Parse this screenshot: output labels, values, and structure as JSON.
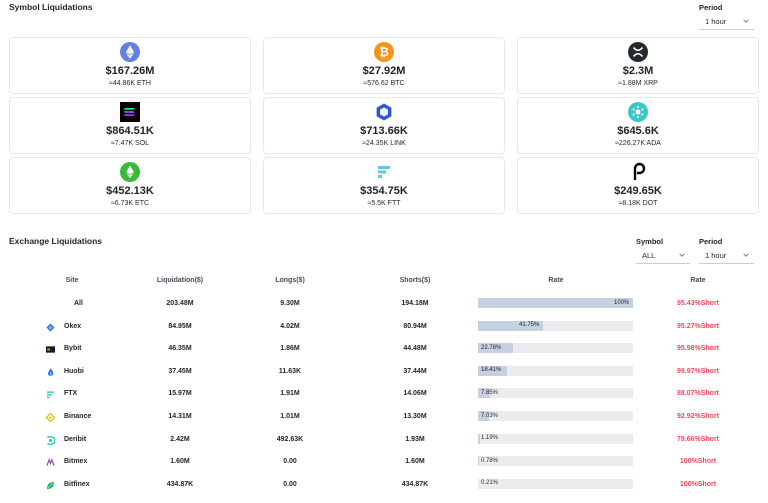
{
  "symbol_section": {
    "title": "Symbol Liquidations",
    "period_label": "Period",
    "period_value": "1 hour"
  },
  "cards": [
    {
      "icon": "eth-icon",
      "amount": "$167.26M",
      "approx": "≈44.86K ETH"
    },
    {
      "icon": "btc-icon",
      "amount": "$27.92M",
      "approx": "≈576.62 BTC"
    },
    {
      "icon": "xrp-icon",
      "amount": "$2.3M",
      "approx": "≈1.88M XRP"
    },
    {
      "icon": "sol-icon",
      "amount": "$864.51K",
      "approx": "≈7.47K SOL"
    },
    {
      "icon": "link-icon",
      "amount": "$713.66K",
      "approx": "≈24.35K LINK"
    },
    {
      "icon": "ada-icon",
      "amount": "$645.6K",
      "approx": "≈226.27K ADA"
    },
    {
      "icon": "etc-icon",
      "amount": "$452.13K",
      "approx": "≈6.73K ETC"
    },
    {
      "icon": "ftt-icon",
      "amount": "$354.75K",
      "approx": "≈5.5K FTT"
    },
    {
      "icon": "dot-icon",
      "amount": "$249.65K",
      "approx": "≈8.18K DOT"
    }
  ],
  "exchange_section": {
    "title": "Exchange Liquidations",
    "symbol_label": "Symbol",
    "symbol_value": "ALL",
    "period_label": "Period",
    "period_value": "1 hour"
  },
  "table": {
    "headers": [
      "Site",
      "Liquidation($)",
      "Longs($)",
      "Shorts($)",
      "Rate",
      "Rate"
    ],
    "rows": [
      {
        "site": "All",
        "icon": "",
        "liquidation": "203.48M",
        "longs": "9.30M",
        "shorts": "194.18M",
        "rate_bar_label": "100%",
        "rate_bar_value": 1.0,
        "rate_short": "95.43%Short"
      },
      {
        "site": "Okex",
        "icon": "okex-icon",
        "liquidation": "84.95M",
        "longs": "4.02M",
        "shorts": "80.94M",
        "rate_bar_label": "41.75%",
        "rate_bar_value": 0.4175,
        "rate_short": "95.27%Short"
      },
      {
        "site": "Bybit",
        "icon": "bybit-icon",
        "liquidation": "46.35M",
        "longs": "1.86M",
        "shorts": "44.48M",
        "rate_bar_label": "22.78%",
        "rate_bar_value": 0.2278,
        "rate_short": "95.98%Short"
      },
      {
        "site": "Huobi",
        "icon": "huobi-icon",
        "liquidation": "37.45M",
        "longs": "11.63K",
        "shorts": "37.44M",
        "rate_bar_label": "18.41%",
        "rate_bar_value": 0.1841,
        "rate_short": "99.97%Short"
      },
      {
        "site": "FTX",
        "icon": "ftx-icon",
        "liquidation": "15.97M",
        "longs": "1.91M",
        "shorts": "14.06M",
        "rate_bar_label": "7.85%",
        "rate_bar_value": 0.0785,
        "rate_short": "88.07%Short"
      },
      {
        "site": "Binance",
        "icon": "binance-icon",
        "liquidation": "14.31M",
        "longs": "1.01M",
        "shorts": "13.30M",
        "rate_bar_label": "7.03%",
        "rate_bar_value": 0.0703,
        "rate_short": "92.92%Short"
      },
      {
        "site": "Deribit",
        "icon": "deribit-icon",
        "liquidation": "2.42M",
        "longs": "492.63K",
        "shorts": "1.93M",
        "rate_bar_label": "1.19%",
        "rate_bar_value": 0.0119,
        "rate_short": "79.66%Short"
      },
      {
        "site": "Bitmex",
        "icon": "bitmex-icon",
        "liquidation": "1.60M",
        "longs": "0.00",
        "shorts": "1.60M",
        "rate_bar_label": "0.78%",
        "rate_bar_value": 0.0078,
        "rate_short": "100%Short"
      },
      {
        "site": "Bitfinex",
        "icon": "bitfinex-icon",
        "liquidation": "434.87K",
        "longs": "0.00",
        "shorts": "434.87K",
        "rate_bar_label": "0.21%",
        "rate_bar_value": 0.0021,
        "rate_short": "100%Short"
      }
    ]
  },
  "colors": {
    "short_red": "#f6465d",
    "bar_fill": "#c7d0e0",
    "bar_track": "#eaecef"
  }
}
